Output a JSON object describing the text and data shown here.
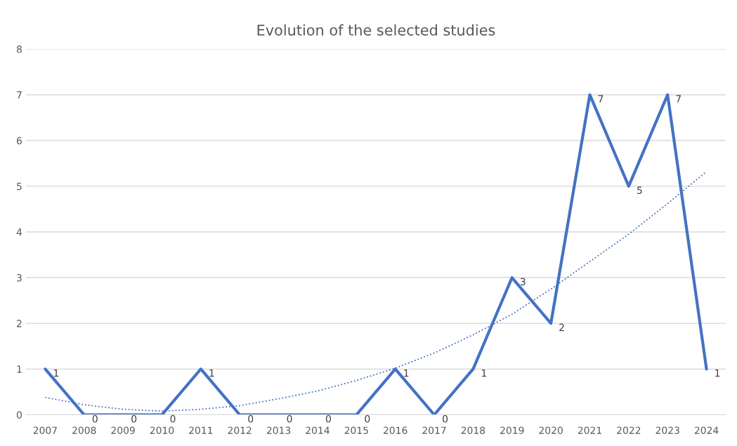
{
  "chart_data": {
    "type": "line",
    "title": "Evolution of the selected studies",
    "categories": [
      "2007",
      "2008",
      "2009",
      "2010",
      "2011",
      "2012",
      "2013",
      "2014",
      "2015",
      "2016",
      "2017",
      "2018",
      "2019",
      "2020",
      "2021",
      "2022",
      "2023",
      "2024"
    ],
    "series": [
      {
        "color": "#4472c4",
        "values": [
          1,
          0,
          0,
          0,
          1,
          0,
          0,
          0,
          0,
          1,
          0,
          1,
          3,
          2,
          7,
          5,
          7,
          1
        ],
        "line_style": "solid",
        "data_labels": true
      },
      {
        "color": "#4472c4",
        "values": [
          0.38,
          0.22,
          0.12,
          0.08,
          0.12,
          0.2,
          0.35,
          0.52,
          0.75,
          1.02,
          1.35,
          1.75,
          2.2,
          2.75,
          3.35,
          3.95,
          4.62,
          5.32
        ],
        "line_style": "dotted"
      }
    ],
    "ylim": [
      0,
      8
    ],
    "yticks": [
      0,
      1,
      2,
      3,
      4,
      5,
      6,
      7,
      8
    ],
    "grid": "y",
    "legend": false,
    "marker": "none"
  }
}
